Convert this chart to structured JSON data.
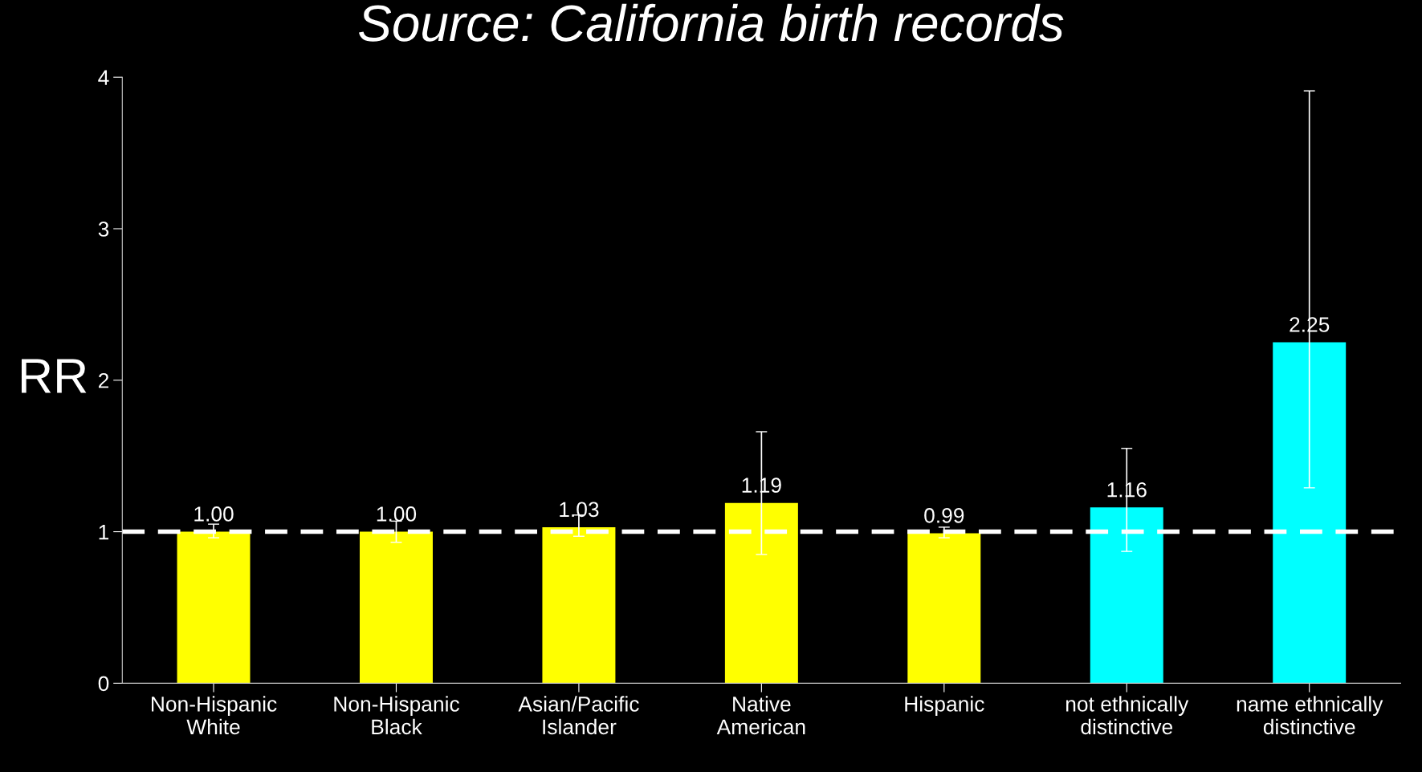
{
  "chart_data": {
    "type": "bar",
    "title": "Source: California birth records",
    "ylabel": "RR",
    "categories": [
      "Non-Hispanic\nWhite",
      "Non-Hispanic\nBlack",
      "Asian/Pacific\nIslander",
      "Native\nAmerican",
      "Hispanic",
      "not ethnically\ndistinctive",
      "name ethnically\ndistinctive"
    ],
    "values": [
      1.0,
      1.0,
      1.03,
      1.19,
      0.99,
      1.16,
      2.25
    ],
    "value_labels": [
      "1.00",
      "1.00",
      "1.03",
      "1.19",
      "0.99",
      "1.16",
      "2.25"
    ],
    "colors": [
      "#ffff00",
      "#ffff00",
      "#ffff00",
      "#ffff00",
      "#ffff00",
      "#00ffff",
      "#00ffff"
    ],
    "errors": [
      [
        0.96,
        1.05
      ],
      [
        0.93,
        1.07
      ],
      [
        0.97,
        1.11
      ],
      [
        0.85,
        1.66
      ],
      [
        0.96,
        1.03
      ],
      [
        0.87,
        1.55
      ],
      [
        1.29,
        3.91
      ]
    ],
    "ylim": [
      0,
      4
    ],
    "yticks": [
      0,
      1,
      2,
      3,
      4
    ],
    "grid": false,
    "legend": false,
    "ref_lines": [
      {
        "axis": "y",
        "value": 1,
        "color": "#ffffff",
        "line_style": "dashed"
      }
    ]
  }
}
